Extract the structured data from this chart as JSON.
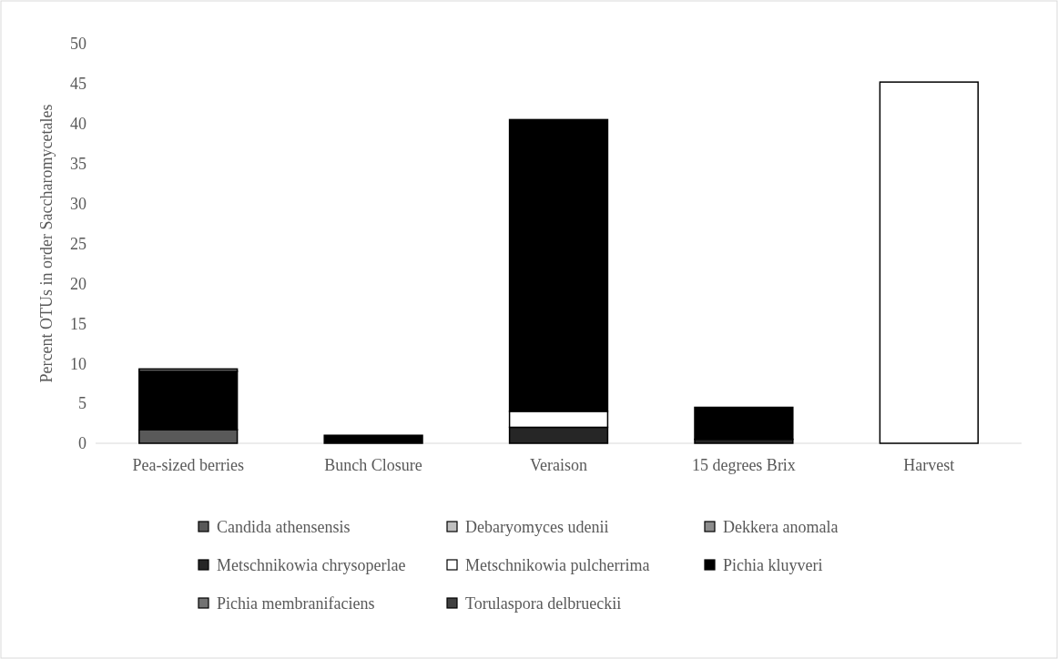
{
  "chart_data": {
    "type": "bar",
    "stacked": true,
    "ylabel": "Percent OTUs in order Saccharomycetales",
    "categories": [
      "Pea-sized berries",
      "Bunch Closure",
      "Veraison",
      "15 degrees Brix",
      "Harvest"
    ],
    "ylim": [
      0,
      50
    ],
    "yticks": [
      0,
      5,
      10,
      15,
      20,
      25,
      30,
      35,
      40,
      45,
      50
    ],
    "legend": "bottom",
    "grid": false,
    "series": [
      {
        "name": "Candida athensensis",
        "color": "#595959",
        "values": [
          1.7,
          0,
          0,
          0,
          0
        ]
      },
      {
        "name": "Debaryomyces udenii",
        "color": "#bfbfbf",
        "values": [
          0,
          0,
          0,
          0,
          0
        ]
      },
      {
        "name": "Dekkera anomala",
        "color": "#8c8c8c",
        "values": [
          0,
          0,
          0,
          0,
          0
        ]
      },
      {
        "name": "Metschnikowia chrysoperlae",
        "color": "#262626",
        "values": [
          0,
          0,
          2,
          0.5,
          0
        ]
      },
      {
        "name": "Metschnikowia pulcherrima",
        "color": "#ffffff",
        "values": [
          0,
          0,
          2,
          0,
          45.2
        ]
      },
      {
        "name": "Pichia kluyveri",
        "color": "#000000",
        "values": [
          7.3,
          1,
          36.5,
          4,
          0
        ]
      },
      {
        "name": "Pichia membranifaciens",
        "color": "#737373",
        "values": [
          0.3,
          0,
          0,
          0,
          0
        ]
      },
      {
        "name": "Torulaspora delbrueckii",
        "color": "#404040",
        "values": [
          0,
          0,
          0,
          0,
          0
        ]
      }
    ]
  }
}
